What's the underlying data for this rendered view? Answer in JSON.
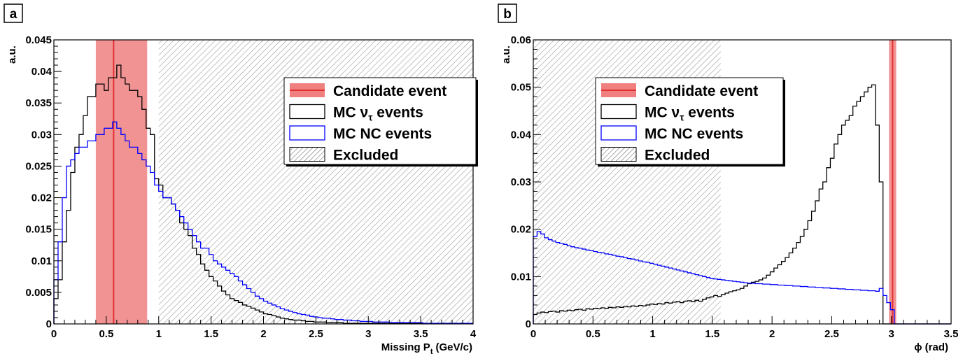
{
  "chart_data": [
    {
      "panel_label": "a",
      "type": "histogram",
      "xlabel": "Missing P",
      "xlabel_sub": "t",
      "xlabel_unit": "(GeV/c)",
      "ylabel": "a.u.",
      "xlim": [
        0,
        4
      ],
      "ylim": [
        0,
        0.045
      ],
      "x_ticks": [
        0,
        0.5,
        1,
        1.5,
        2,
        2.5,
        3,
        3.5,
        4
      ],
      "x_tick_labels": [
        "0",
        "0.5",
        "1",
        "1.5",
        "2",
        "2.5",
        "3",
        "3.5",
        "4"
      ],
      "y_ticks": [
        0,
        0.005,
        0.01,
        0.015,
        0.02,
        0.025,
        0.03,
        0.035,
        0.04,
        0.045
      ],
      "y_tick_labels": [
        "0",
        "0.005",
        "0.01",
        "0.015",
        "0.02",
        "0.025",
        "0.03",
        "0.035",
        "0.04",
        "0.045"
      ],
      "candidate": {
        "value": 0.57,
        "band": [
          0.4,
          0.89
        ]
      },
      "excluded_region": [
        1.0,
        4.0
      ],
      "legend": {
        "candidate": "Candidate event",
        "mc_nutau_pre": "MC ν",
        "mc_nutau_sub": "τ",
        "mc_nutau_post": " events",
        "mc_nc": "MC NC events",
        "excluded": "Excluded"
      },
      "series": [
        {
          "key": "mc_nutau",
          "bin_width": 0.04,
          "values": [
            0.004,
            0.007,
            0.013,
            0.018,
            0.024,
            0.028,
            0.03,
            0.033,
            0.036,
            0.036,
            0.038,
            0.038,
            0.037,
            0.039,
            0.039,
            0.041,
            0.039,
            0.038,
            0.037,
            0.037,
            0.036,
            0.034,
            0.031,
            0.03,
            0.023,
            0.022,
            0.02,
            0.02,
            0.019,
            0.018,
            0.016,
            0.015,
            0.014,
            0.012,
            0.011,
            0.0095,
            0.0085,
            0.0075,
            0.0068,
            0.006,
            0.0052,
            0.0046,
            0.004,
            0.0037,
            0.0034,
            0.003,
            0.0028,
            0.0025,
            0.0022,
            0.0019,
            0.0016,
            0.0015,
            0.0013,
            0.0011,
            0.0009,
            0.0008,
            0.0007,
            0.0006,
            0.0006,
            0.0005,
            0.0004,
            0.0004,
            0.0003,
            0.0003,
            0.0003,
            0.0002,
            0.0002,
            0.0002,
            0.0002,
            0.0001,
            0.0001,
            0.0001,
            0.0001,
            0.0001,
            0.0001,
            0.0001,
            0.0001,
            0.0001,
            0.0001,
            0.0001,
            0.0001,
            0.0001,
            0.0001,
            0.0001,
            0.0001,
            0.0001,
            0.0001,
            0.0001,
            0.0001,
            0.0001,
            0.0001,
            0.0001,
            0.0001,
            0.0001,
            0.0001,
            0.0001,
            0.0001,
            0.0001,
            0.0001,
            0.0001
          ]
        },
        {
          "key": "mc_nc",
          "bin_width": 0.04,
          "values": [
            0.007,
            0.013,
            0.02,
            0.025,
            0.026,
            0.027,
            0.028,
            0.028,
            0.029,
            0.029,
            0.03,
            0.03,
            0.031,
            0.031,
            0.032,
            0.031,
            0.03,
            0.029,
            0.028,
            0.028,
            0.027,
            0.026,
            0.025,
            0.024,
            0.022,
            0.021,
            0.02,
            0.02,
            0.019,
            0.018,
            0.017,
            0.016,
            0.015,
            0.014,
            0.013,
            0.012,
            0.012,
            0.011,
            0.01,
            0.0095,
            0.009,
            0.0085,
            0.008,
            0.0075,
            0.0068,
            0.0062,
            0.0056,
            0.005,
            0.0044,
            0.004,
            0.0036,
            0.0033,
            0.003,
            0.0027,
            0.0024,
            0.0022,
            0.002,
            0.0018,
            0.0016,
            0.0015,
            0.0014,
            0.0012,
            0.0011,
            0.001,
            0.0009,
            0.0009,
            0.0008,
            0.0007,
            0.0007,
            0.0006,
            0.0006,
            0.0005,
            0.0005,
            0.0004,
            0.0004,
            0.0004,
            0.0003,
            0.0003,
            0.0003,
            0.0003,
            0.0002,
            0.0002,
            0.0002,
            0.0002,
            0.0002,
            0.0002,
            0.0002,
            0.0002,
            0.0001,
            0.0001,
            0.0001,
            0.0001,
            0.0001,
            0.0001,
            0.0001,
            0.0001,
            0.0001,
            0.0001,
            0.0001,
            0.0001
          ]
        }
      ]
    },
    {
      "panel_label": "b",
      "type": "histogram",
      "xlabel": "ϕ (rad)",
      "ylabel": "a.u.",
      "xlim": [
        0,
        3.5
      ],
      "ylim": [
        0,
        0.06
      ],
      "x_ticks": [
        0,
        0.5,
        1,
        1.5,
        2,
        2.5,
        3,
        3.5
      ],
      "x_tick_labels": [
        "0",
        "0.5",
        "1",
        "1.5",
        "2",
        "2.5",
        "3",
        "3.5"
      ],
      "y_ticks": [
        0,
        0.01,
        0.02,
        0.03,
        0.04,
        0.05,
        0.06
      ],
      "y_tick_labels": [
        "0",
        "0.01",
        "0.02",
        "0.03",
        "0.04",
        "0.05",
        "0.06"
      ],
      "candidate": {
        "value": 3.01,
        "band": [
          2.98,
          3.04
        ]
      },
      "excluded_region": [
        0,
        1.57
      ],
      "legend": {
        "candidate": "Candidate event",
        "mc_nutau_pre": "MC ν",
        "mc_nutau_sub": "τ",
        "mc_nutau_post": " events",
        "mc_nc": "MC NC events",
        "excluded": "Excluded"
      },
      "series": [
        {
          "key": "mc_nutau",
          "bin_width": 0.0315,
          "values": [
            0.002,
            0.0023,
            0.0025,
            0.0024,
            0.0026,
            0.0027,
            0.0025,
            0.0028,
            0.0027,
            0.0029,
            0.0028,
            0.003,
            0.0031,
            0.0029,
            0.0032,
            0.0031,
            0.0033,
            0.0032,
            0.0034,
            0.0033,
            0.0035,
            0.0034,
            0.0036,
            0.0035,
            0.0037,
            0.0036,
            0.0038,
            0.0037,
            0.0039,
            0.0038,
            0.004,
            0.0042,
            0.0041,
            0.0043,
            0.0042,
            0.0045,
            0.0044,
            0.0046,
            0.0047,
            0.0045,
            0.0048,
            0.0049,
            0.0047,
            0.005,
            0.0048,
            0.0052,
            0.0055,
            0.0057,
            0.006,
            0.0058,
            0.0062,
            0.0065,
            0.0068,
            0.007,
            0.0072,
            0.0075,
            0.008,
            0.0085,
            0.0088,
            0.009,
            0.0093,
            0.0097,
            0.0103,
            0.011,
            0.0118,
            0.0125,
            0.0132,
            0.014,
            0.015,
            0.016,
            0.0172,
            0.0185,
            0.02,
            0.0218,
            0.0238,
            0.026,
            0.0285,
            0.03,
            0.033,
            0.035,
            0.038,
            0.04,
            0.042,
            0.043,
            0.044,
            0.046,
            0.047,
            0.048,
            0.049,
            0.05,
            0.0505,
            0.042,
            0.03,
            0.0,
            0.0,
            0.0,
            0.0,
            0.0,
            0.0,
            0.0,
            0.0,
            0.0,
            0.0,
            0.0,
            0.0,
            0.0,
            0.0,
            0.0,
            0.0,
            0.0,
            0.0
          ]
        },
        {
          "key": "mc_nc",
          "bin_width": 0.0315,
          "values": [
            0.0185,
            0.0195,
            0.019,
            0.0182,
            0.0178,
            0.0175,
            0.0172,
            0.017,
            0.0168,
            0.0165,
            0.0163,
            0.0161,
            0.016,
            0.0158,
            0.0156,
            0.0155,
            0.0153,
            0.0151,
            0.015,
            0.0148,
            0.0147,
            0.0145,
            0.0143,
            0.0142,
            0.014,
            0.0138,
            0.0137,
            0.0135,
            0.0133,
            0.0131,
            0.013,
            0.0128,
            0.0126,
            0.0124,
            0.0122,
            0.012,
            0.0118,
            0.0116,
            0.0114,
            0.0112,
            0.011,
            0.0108,
            0.0106,
            0.0104,
            0.0102,
            0.01,
            0.0098,
            0.0096,
            0.0095,
            0.0094,
            0.0093,
            0.0092,
            0.0091,
            0.009,
            0.0089,
            0.0088,
            0.0087,
            0.0086,
            0.0086,
            0.0085,
            0.0085,
            0.0084,
            0.0084,
            0.0083,
            0.0083,
            0.0082,
            0.0082,
            0.0081,
            0.0081,
            0.008,
            0.008,
            0.0079,
            0.0079,
            0.0078,
            0.0078,
            0.0077,
            0.0077,
            0.0076,
            0.0076,
            0.0075,
            0.0075,
            0.0074,
            0.0074,
            0.0073,
            0.0073,
            0.0072,
            0.0072,
            0.0071,
            0.0071,
            0.007,
            0.007,
            0.0069,
            0.0075,
            0.006,
            0.0045,
            0.003,
            0.0,
            0.0,
            0.0,
            0.0,
            0.0,
            0.0,
            0.0,
            0.0,
            0.0,
            0.0,
            0.0,
            0.0,
            0.0,
            0.0,
            0.0
          ]
        }
      ]
    }
  ],
  "colors": {
    "mc_nutau": "#000000",
    "mc_nc": "#0000ff",
    "candidate_line": "#e03030",
    "candidate_band": "#f08080",
    "hatch": "#888888",
    "frame": "#000000"
  }
}
